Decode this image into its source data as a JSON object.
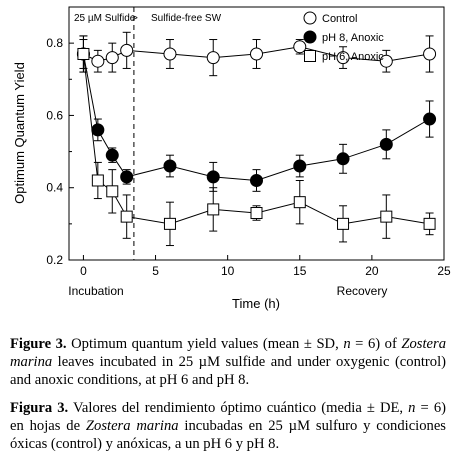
{
  "chart_data": {
    "type": "line",
    "ylabel": "Optimum Quantum Yield",
    "xlabel": "Time (h)",
    "xlim": [
      -1,
      25
    ],
    "ylim": [
      0.2,
      0.9
    ],
    "xticks": [
      0,
      5,
      10,
      15,
      20,
      25
    ],
    "yticks": [
      0.2,
      0.4,
      0.6,
      0.8
    ],
    "ytick_labels": [
      "0.2",
      "0.4",
      "0.6",
      "0.8"
    ],
    "phase_labels": [
      "Incubation",
      "Recovery"
    ],
    "annotations": {
      "left": "25 µM Sulfide",
      "arrow": ">",
      "right": "Sulfide-free SW",
      "divider_x": 3.5
    },
    "legend_position": "top-right",
    "grid": false,
    "series": [
      {
        "name": "Control",
        "marker": "open-circle",
        "x": [
          0,
          1,
          2,
          3,
          6,
          9,
          12,
          15,
          18,
          21,
          24
        ],
        "y": [
          0.77,
          0.75,
          0.76,
          0.78,
          0.77,
          0.76,
          0.77,
          0.79,
          0.76,
          0.75,
          0.77
        ],
        "err": [
          0.04,
          0.03,
          0.04,
          0.05,
          0.04,
          0.05,
          0.04,
          0.02,
          0.03,
          0.03,
          0.05
        ]
      },
      {
        "name": "pH 8, Anoxic",
        "marker": "filled-circle",
        "x": [
          0,
          1,
          2,
          3,
          6,
          9,
          12,
          15,
          18,
          21,
          24
        ],
        "y": [
          0.77,
          0.56,
          0.49,
          0.43,
          0.46,
          0.43,
          0.42,
          0.46,
          0.48,
          0.52,
          0.59
        ],
        "err": [
          0.05,
          0.03,
          0.02,
          0.02,
          0.03,
          0.04,
          0.03,
          0.03,
          0.04,
          0.04,
          0.05
        ]
      },
      {
        "name": "pH 6, Anoxic",
        "marker": "open-square",
        "x": [
          0,
          1,
          2,
          3,
          6,
          9,
          12,
          15,
          18,
          21,
          24
        ],
        "y": [
          0.77,
          0.42,
          0.39,
          0.32,
          0.3,
          0.34,
          0.33,
          0.36,
          0.3,
          0.32,
          0.3
        ],
        "err": [
          0.05,
          0.05,
          0.06,
          0.06,
          0.06,
          0.06,
          0.02,
          0.06,
          0.05,
          0.06,
          0.03
        ]
      }
    ]
  },
  "caption_en": {
    "label": "Figure 3.",
    "t1": " Optimum quantum yield values (mean ± SD, ",
    "n": "n",
    "t2": " = 6) of ",
    "species": "Zostera marina",
    "t3": " leaves incubated in 25 µM sulfide and under oxygenic (control) and anoxic conditions, at pH 6 and pH 8."
  },
  "caption_es": {
    "label": "Figura 3.",
    "t1": " Valores del rendimiento óptimo cuántico (media ± DE, ",
    "n": "n",
    "t2": " = 6) en hojas de ",
    "species": "Zostera marina",
    "t3": " incubadas en 25 µM sulfuro y condiciones óxicas (control) y anóxicas, a un pH 6 y pH 8."
  }
}
